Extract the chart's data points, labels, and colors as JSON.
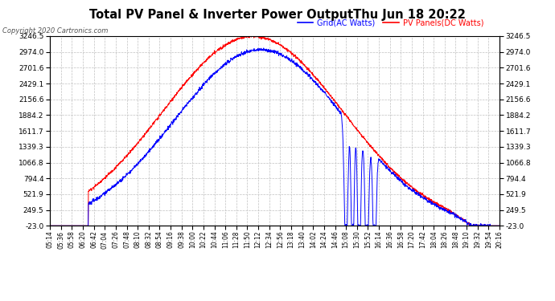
{
  "title": "Total PV Panel & Inverter Power OutputThu Jun 18 20:22",
  "copyright": "Copyright 2020 Cartronics.com",
  "legend_blue": "Grid(AC Watts)",
  "legend_red": "PV Panels(DC Watts)",
  "y_min": -23.0,
  "y_max": 3246.5,
  "y_ticks": [
    -23.0,
    249.5,
    521.9,
    794.4,
    1066.8,
    1339.3,
    1611.7,
    1884.2,
    2156.6,
    2429.1,
    2701.6,
    2974.0,
    3246.5
  ],
  "x_labels": [
    "05:14",
    "05:36",
    "05:58",
    "06:20",
    "06:42",
    "07:04",
    "07:26",
    "07:48",
    "08:10",
    "08:32",
    "08:54",
    "09:16",
    "09:38",
    "10:00",
    "10:22",
    "10:44",
    "11:06",
    "11:28",
    "11:50",
    "12:12",
    "12:34",
    "12:56",
    "13:18",
    "13:40",
    "14:02",
    "14:24",
    "14:46",
    "15:08",
    "15:30",
    "15:52",
    "16:14",
    "16:36",
    "16:58",
    "17:20",
    "17:42",
    "18:04",
    "18:26",
    "18:48",
    "19:10",
    "19:32",
    "19:54",
    "20:16"
  ],
  "color_blue": "#0000ff",
  "color_red": "#ff0000",
  "background_color": "#ffffff",
  "grid_color": "#c0c0c0"
}
